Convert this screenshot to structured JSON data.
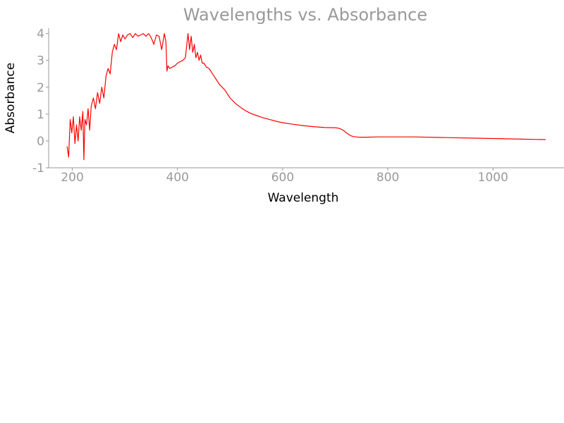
{
  "chart_data": {
    "type": "line",
    "title": "Wavelengths vs. Absorbance",
    "xlabel": "Wavelength",
    "ylabel": "Absorbance",
    "xlim": [
      155,
      1135
    ],
    "ylim": [
      -1,
      4.2
    ],
    "xticks": [
      "200",
      "400",
      "600",
      "800",
      "1000"
    ],
    "yticks": [
      "-1",
      "0",
      "1",
      "2",
      "3",
      "4"
    ],
    "grid": false,
    "legend": "none",
    "series": [
      {
        "color": "#ff0000",
        "x": [
          190,
          193,
          196,
          199,
          202,
          205,
          208,
          211,
          214,
          217,
          220,
          222,
          224,
          227,
          230,
          233,
          236,
          240,
          244,
          248,
          252,
          256,
          260,
          264,
          268,
          272,
          276,
          280,
          284,
          288,
          292,
          296,
          300,
          305,
          310,
          315,
          320,
          325,
          330,
          335,
          340,
          345,
          350,
          355,
          360,
          365,
          370,
          375,
          378,
          380,
          382,
          385,
          390,
          395,
          400,
          405,
          410,
          415,
          420,
          423,
          426,
          429,
          432,
          435,
          438,
          441,
          444,
          447,
          450,
          455,
          460,
          465,
          470,
          475,
          480,
          490,
          500,
          510,
          520,
          530,
          540,
          550,
          560,
          575,
          590,
          600,
          620,
          640,
          660,
          680,
          700,
          705,
          710,
          715,
          720,
          725,
          730,
          735,
          740,
          745,
          750,
          760,
          780,
          800,
          850,
          900,
          950,
          1000,
          1050,
          1100
        ],
        "y": [
          -0.2,
          -0.6,
          0.8,
          0.3,
          0.9,
          -0.1,
          0.6,
          0.0,
          0.9,
          0.4,
          1.1,
          -0.7,
          0.8,
          0.6,
          1.2,
          0.4,
          1.3,
          1.6,
          1.2,
          1.8,
          1.4,
          2.0,
          1.6,
          2.4,
          2.7,
          2.5,
          3.3,
          3.6,
          3.4,
          4.0,
          3.7,
          3.95,
          3.8,
          3.95,
          4.0,
          3.85,
          4.0,
          3.9,
          3.95,
          4.0,
          3.9,
          4.0,
          3.85,
          3.6,
          3.95,
          3.9,
          3.4,
          4.0,
          3.7,
          2.6,
          2.8,
          2.7,
          2.75,
          2.8,
          2.9,
          2.95,
          3.0,
          3.1,
          4.0,
          3.4,
          3.9,
          3.3,
          3.6,
          3.1,
          3.3,
          3.0,
          3.2,
          2.9,
          2.9,
          2.75,
          2.7,
          2.55,
          2.4,
          2.25,
          2.1,
          1.9,
          1.6,
          1.4,
          1.25,
          1.12,
          1.02,
          0.95,
          0.88,
          0.8,
          0.72,
          0.68,
          0.62,
          0.57,
          0.53,
          0.5,
          0.49,
          0.48,
          0.45,
          0.4,
          0.32,
          0.25,
          0.19,
          0.16,
          0.15,
          0.14,
          0.14,
          0.14,
          0.15,
          0.15,
          0.15,
          0.13,
          0.11,
          0.09,
          0.07,
          0.05
        ]
      }
    ]
  }
}
